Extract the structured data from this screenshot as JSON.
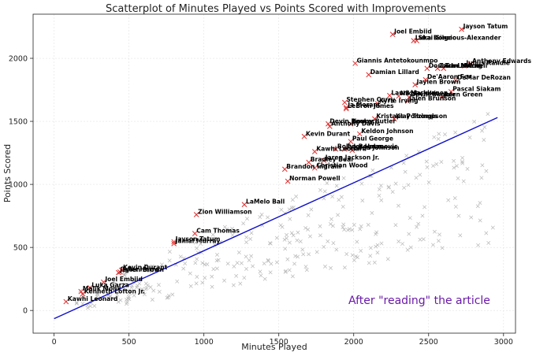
{
  "chart_data": {
    "type": "scatter",
    "title": "Scatterplot of Minutes Played vs Points Scored with Improvements",
    "xlabel": "Minutes Played",
    "ylabel": "Points Scored",
    "xlim": [
      -140,
      3080
    ],
    "ylim": [
      -180,
      2350
    ],
    "x_ticks": [
      0,
      500,
      1000,
      1500,
      2000,
      2500,
      3000
    ],
    "y_ticks": [
      0,
      500,
      1000,
      1500,
      2000
    ],
    "grid": true,
    "annotation": "After \"reading\" the article",
    "trend_line": {
      "color": "#1010c8",
      "x": [
        0,
        2960
      ],
      "y": [
        -65,
        1530
      ]
    },
    "highlight_color": "#e03030",
    "background_color": "#b8b8b8",
    "labeled_points": [
      {
        "name": "Jayson Tatum",
        "x": 2720,
        "y": 2230
      },
      {
        "name": "Joel Embiid",
        "x": 2260,
        "y": 2190
      },
      {
        "name": "Shai Gilgeous-Alexander",
        "x": 2420,
        "y": 2140
      },
      {
        "name": "Luka Doncic",
        "x": 2400,
        "y": 2140
      },
      {
        "name": "Giannis Antetokounmpo",
        "x": 2010,
        "y": 1960
      },
      {
        "name": "Anthony Edwards",
        "x": 2780,
        "y": 1955
      },
      {
        "name": "Julius Randle",
        "x": 2740,
        "y": 1940
      },
      {
        "name": "Donovan Mitchell",
        "x": 2490,
        "y": 1920
      },
      {
        "name": "Zach LaVine",
        "x": 2560,
        "y": 1920
      },
      {
        "name": "Trae Young",
        "x": 2600,
        "y": 1920
      },
      {
        "name": "Damian Lillard",
        "x": 2100,
        "y": 1870
      },
      {
        "name": "De'Aaron Fox",
        "x": 2480,
        "y": 1830
      },
      {
        "name": "DeMar DeRozan",
        "x": 2680,
        "y": 1825
      },
      {
        "name": "Jaylen Brown",
        "x": 2410,
        "y": 1790
      },
      {
        "name": "Pascal Siakam",
        "x": 2650,
        "y": 1735
      },
      {
        "name": "Lauri Markkanen",
        "x": 2240,
        "y": 1705
      },
      {
        "name": "Nikola Jokic",
        "x": 2300,
        "y": 1700
      },
      {
        "name": "Devin Booker",
        "x": 2370,
        "y": 1690
      },
      {
        "name": "Jalen Green",
        "x": 2590,
        "y": 1690
      },
      {
        "name": "Stephen Curry",
        "x": 1940,
        "y": 1650
      },
      {
        "name": "Kyrie Irving",
        "x": 2160,
        "y": 1640
      },
      {
        "name": "Jalen Brunson",
        "x": 2360,
        "y": 1660
      },
      {
        "name": "Ja Morant",
        "x": 1950,
        "y": 1610
      },
      {
        "name": "LeBron James",
        "x": 1950,
        "y": 1600
      },
      {
        "name": "Kristaps Porzingis",
        "x": 2140,
        "y": 1520
      },
      {
        "name": "Klay Thompson",
        "x": 2270,
        "y": 1520
      },
      {
        "name": "Devin Booker",
        "x": 1830,
        "y": 1480
      },
      {
        "name": "Jimmy Butler",
        "x": 1980,
        "y": 1480
      },
      {
        "name": "Anthony Davis",
        "x": 1840,
        "y": 1460
      },
      {
        "name": "Keldon Johnson",
        "x": 2040,
        "y": 1400
      },
      {
        "name": "Kevin Durant",
        "x": 1670,
        "y": 1380
      },
      {
        "name": "Paul George",
        "x": 1980,
        "y": 1340
      },
      {
        "name": "Bojan Bogdanovic",
        "x": 1880,
        "y": 1280
      },
      {
        "name": "Tyler Herro",
        "x": 1940,
        "y": 1280
      },
      {
        "name": "Kawhi Leonard",
        "x": 1740,
        "y": 1260
      },
      {
        "name": "Jalen Johnson",
        "x": 1990,
        "y": 1270
      },
      {
        "name": "Jaren Jackson Jr.",
        "x": 1800,
        "y": 1190
      },
      {
        "name": "Bradley Beal",
        "x": 1700,
        "y": 1175
      },
      {
        "name": "Brandon Ingram",
        "x": 1540,
        "y": 1120
      },
      {
        "name": "Christian Wood",
        "x": 1740,
        "y": 1130
      },
      {
        "name": "Norman Powell",
        "x": 1560,
        "y": 1025
      },
      {
        "name": "LaMelo Ball",
        "x": 1270,
        "y": 840
      },
      {
        "name": "Zion Williamson",
        "x": 950,
        "y": 760
      },
      {
        "name": "Cam Thomas",
        "x": 940,
        "y": 610
      },
      {
        "name": "Jayson Tatum",
        "x": 800,
        "y": 545
      },
      {
        "name": "Jamal Murray",
        "x": 800,
        "y": 530
      },
      {
        "name": "Kevin Durant",
        "x": 450,
        "y": 320
      },
      {
        "name": "Tyler Herro",
        "x": 440,
        "y": 305
      },
      {
        "name": "Jaylen Brown",
        "x": 430,
        "y": 300
      },
      {
        "name": "Joel Embiid",
        "x": 330,
        "y": 225
      },
      {
        "name": "Luka Garza",
        "x": 240,
        "y": 180
      },
      {
        "name": "Malik Monk",
        "x": 180,
        "y": 150
      },
      {
        "name": "Kenneth Lofton Jr.",
        "x": 190,
        "y": 130
      },
      {
        "name": "Kawhi Leonard",
        "x": 80,
        "y": 70
      }
    ]
  }
}
